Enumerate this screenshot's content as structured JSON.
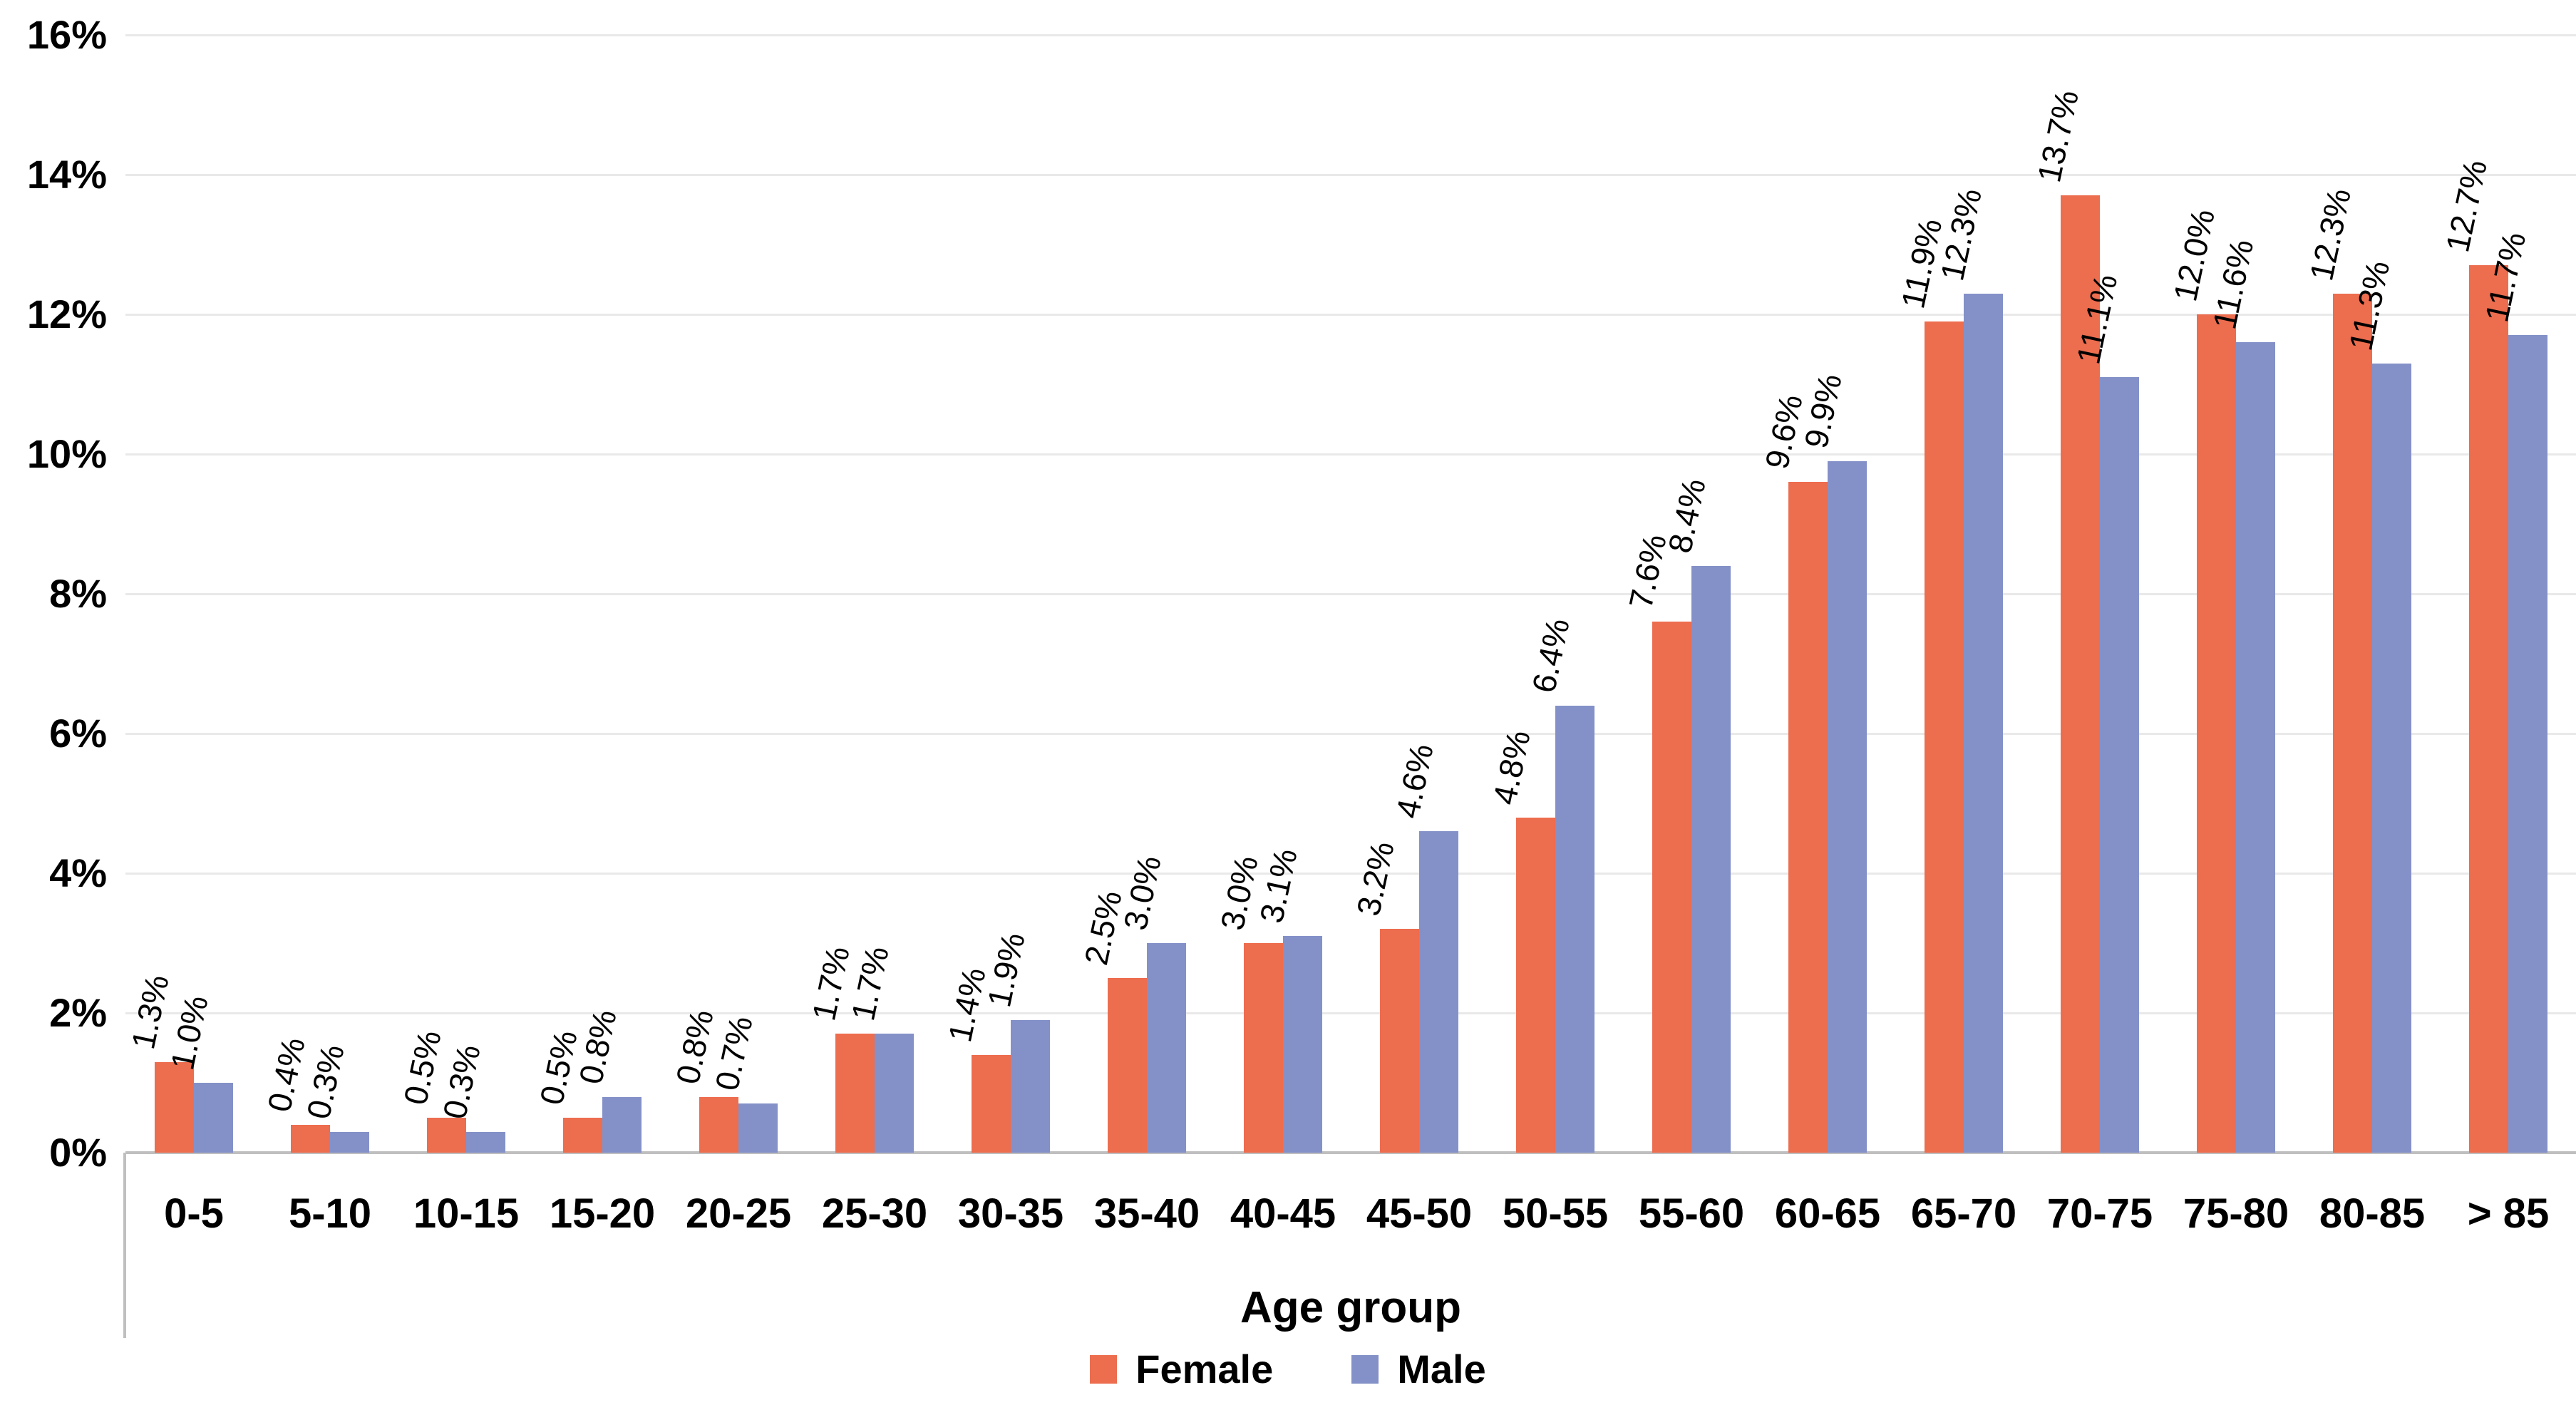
{
  "chart_data": {
    "type": "bar",
    "title": "",
    "categories": [
      "0-5",
      "5-10",
      "10-15",
      "15-20",
      "20-25",
      "25-30",
      "30-35",
      "35-40",
      "40-45",
      "45-50",
      "50-55",
      "55-60",
      "60-65",
      "65-70",
      "70-75",
      "75-80",
      "80-85",
      "> 85"
    ],
    "series": [
      {
        "name": "Female",
        "color": "#ED6D4F",
        "values": [
          1.3,
          0.4,
          0.5,
          0.5,
          0.8,
          1.7,
          1.4,
          2.5,
          3.0,
          3.2,
          4.8,
          7.6,
          9.6,
          11.9,
          13.7,
          12.0,
          12.3,
          12.7
        ],
        "labels": [
          "1.3%",
          "0.4%",
          "0.5%",
          "0.5%",
          "0.8%",
          "1.7%",
          "1.4%",
          "2.5%",
          "3.0%",
          "3.2%",
          "4.8%",
          "7.6%",
          "9.6%",
          "11.9%",
          "13.7%",
          "12.0%",
          "12.3%",
          "12.7%"
        ]
      },
      {
        "name": "Male",
        "color": "#8491C8",
        "values": [
          1.0,
          0.3,
          0.3,
          0.8,
          0.7,
          1.7,
          1.9,
          3.0,
          3.1,
          4.6,
          6.4,
          8.4,
          9.9,
          12.3,
          11.1,
          11.6,
          11.3,
          11.7
        ],
        "labels": [
          "1.0%",
          "0.3%",
          "0.3%",
          "0.8%",
          "0.7%",
          "1.7%",
          "1.9%",
          "3.0%",
          "3.1%",
          "4.6%",
          "6.4%",
          "8.4%",
          "9.9%",
          "12.3%",
          "11.1%",
          "11.6%",
          "11.3%",
          "11.7%"
        ]
      }
    ],
    "xlabel": "Age group",
    "ylabel": "",
    "ylim": [
      0,
      16
    ],
    "ytick_step": 2,
    "y_tick_labels": [
      "0%",
      "2%",
      "4%",
      "6%",
      "8%",
      "10%",
      "12%",
      "14%",
      "16%"
    ],
    "grid": true,
    "legend_position": "bottom",
    "data_label_rotation_deg": -78,
    "gridline_color": "#e9e9e9",
    "axis_line_color": "#bfbfbf",
    "text_color": "#000000"
  },
  "legend": {
    "items": [
      {
        "label": "Female",
        "color": "#ED6D4F"
      },
      {
        "label": "Male",
        "color": "#8491C8"
      }
    ]
  }
}
